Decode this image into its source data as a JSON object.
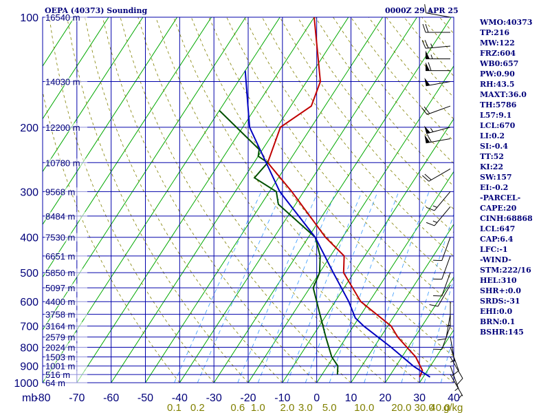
{
  "header": {
    "title": "OEPA (40373) Sounding",
    "time": "0000Z 29 APR 25"
  },
  "indices": [
    "WMO:40373",
    "TP:216",
    "MW:122",
    "FRZ:604",
    "WB0:657",
    "PW:0.90",
    "RH:43.5",
    "MAXT:36.0",
    "TH:5786",
    "L57:9.1",
    "LCL:670",
    "LI:0.2",
    "SI:-0.4",
    "TT:52",
    "KI:22",
    "SW:157",
    "EI:-0.2",
    "-PARCEL-",
    "CAPE:20",
    "CINH:68868",
    "LCL:647",
    "CAP:6.4",
    "LFC:-1",
    "-WIND-",
    "STM:222/16",
    "HEL:310",
    "SHR+:0.0",
    "SRDS:-31",
    "EHI:0.0",
    "BRN:0.1",
    "BSHR:145"
  ],
  "colors": {
    "grid": "#0000aa",
    "skewed_isotherm": "#00a800",
    "dry_adiabat": "#808000",
    "mixing_ratio": "#3399ff",
    "temperature": "#c00000",
    "dewpoint": "#005000",
    "parcel": "#0000c0",
    "wind_barb": "#000000",
    "axis_text": "#00007a",
    "mix_label": "#808000"
  },
  "chart_data": {
    "type": "line",
    "chart_kind": "skew-T log-P sounding",
    "y_scale": "log",
    "x_axis": {
      "unit_label": "mb",
      "ticks": [
        -80,
        -70,
        -60,
        -50,
        -40,
        -30,
        -20,
        -10,
        0,
        10,
        20,
        30,
        40
      ],
      "tick_labels": [
        "-80",
        "-70",
        "-60",
        "-50",
        "-40",
        "-30",
        "-20",
        "-10",
        "0",
        "10",
        "20",
        "30",
        "40"
      ],
      "range": [
        -80,
        40
      ]
    },
    "y_axis": {
      "pressure_ticks": [
        100,
        200,
        300,
        400,
        500,
        600,
        700,
        800,
        900,
        1000
      ],
      "pressure_labels": [
        "100",
        "200",
        "300",
        "400",
        "500",
        "600",
        "700",
        "800",
        "900",
        "1000"
      ],
      "range": [
        100,
        1000
      ]
    },
    "height_labels": [
      {
        "p": 100,
        "label": "16540 m"
      },
      {
        "p": 150,
        "label": "14030 m"
      },
      {
        "p": 200,
        "label": "12200 m"
      },
      {
        "p": 250,
        "label": "10780 m"
      },
      {
        "p": 300,
        "label": "9568 m"
      },
      {
        "p": 350,
        "label": "8484 m"
      },
      {
        "p": 400,
        "label": "7530 m"
      },
      {
        "p": 450,
        "label": "6651 m"
      },
      {
        "p": 500,
        "label": "5850 m"
      },
      {
        "p": 550,
        "label": "5097 m"
      },
      {
        "p": 600,
        "label": "4400 m"
      },
      {
        "p": 650,
        "label": "3758 m"
      },
      {
        "p": 700,
        "label": "3164 m"
      },
      {
        "p": 750,
        "label": "2579 m"
      },
      {
        "p": 800,
        "label": "2024 m"
      },
      {
        "p": 850,
        "label": "1503 m"
      },
      {
        "p": 900,
        "label": "1001 m"
      },
      {
        "p": 950,
        "label": "516 m"
      },
      {
        "p": 1000,
        "label": "64 m"
      }
    ],
    "mixing_ratio_labels": [
      "0.1",
      "0.2",
      "0.6",
      "1.0",
      "2.0",
      "3.0",
      "5.0",
      "10.0",
      "20.0",
      "30.0",
      "40.0"
    ],
    "mixing_ratio_values": [
      0.1,
      0.2,
      0.6,
      1.0,
      2.0,
      3.0,
      5.0,
      10.0,
      20.0,
      30.0,
      40.0
    ],
    "mixing_ratio_unit": "g/kg",
    "series": [
      {
        "key": "temperature",
        "points": [
          [
            100,
            -70
          ],
          [
            150,
            -56
          ],
          [
            175,
            -54
          ],
          [
            200,
            -59
          ],
          [
            250,
            -56
          ],
          [
            300,
            -43.5
          ],
          [
            400,
            -25
          ],
          [
            450,
            -16
          ],
          [
            500,
            -13
          ],
          [
            600,
            -2.5
          ],
          [
            700,
            11
          ],
          [
            750,
            15
          ],
          [
            850,
            24
          ],
          [
            925,
            28.5
          ],
          [
            965,
            29
          ]
        ]
      },
      {
        "key": "dewpoint",
        "points": [
          [
            180,
            -80
          ],
          [
            230,
            -61
          ],
          [
            240,
            -60
          ],
          [
            250,
            -56
          ],
          [
            275,
            -57
          ],
          [
            300,
            -48
          ],
          [
            325,
            -45
          ],
          [
            400,
            -28
          ],
          [
            450,
            -23
          ],
          [
            500,
            -20
          ],
          [
            550,
            -19
          ],
          [
            650,
            -12
          ],
          [
            750,
            -6
          ],
          [
            850,
            -0.5
          ],
          [
            900,
            3
          ],
          [
            950,
            4.5
          ]
        ]
      },
      {
        "key": "parcel",
        "points": [
          [
            140,
            -80
          ],
          [
            200,
            -68
          ],
          [
            300,
            -47
          ],
          [
            400,
            -28
          ],
          [
            500,
            -16
          ],
          [
            600,
            -6
          ],
          [
            665,
            -1
          ],
          [
            700,
            3
          ],
          [
            800,
            15
          ],
          [
            900,
            25
          ],
          [
            965,
            32
          ]
        ]
      }
    ],
    "wind_barbs": [
      {
        "p": 100,
        "dir": 280,
        "spd": 15
      },
      {
        "p": 110,
        "dir": 270,
        "spd": 20
      },
      {
        "p": 120,
        "dir": 265,
        "spd": 25
      },
      {
        "p": 130,
        "dir": 270,
        "spd": 55
      },
      {
        "p": 140,
        "dir": 270,
        "spd": 60
      },
      {
        "p": 150,
        "dir": 260,
        "spd": 50
      },
      {
        "p": 175,
        "dir": 250,
        "spd": 20
      },
      {
        "p": 200,
        "dir": 255,
        "spd": 55
      },
      {
        "p": 215,
        "dir": 260,
        "spd": 60
      },
      {
        "p": 260,
        "dir": 240,
        "spd": 20
      },
      {
        "p": 300,
        "dir": 220,
        "spd": 15
      },
      {
        "p": 330,
        "dir": 220,
        "spd": 15
      },
      {
        "p": 400,
        "dir": 200,
        "spd": 10
      },
      {
        "p": 450,
        "dir": 200,
        "spd": 10
      },
      {
        "p": 500,
        "dir": 200,
        "spd": 10
      },
      {
        "p": 540,
        "dir": 210,
        "spd": 10
      },
      {
        "p": 600,
        "dir": 180,
        "spd": 5
      },
      {
        "p": 650,
        "dir": 190,
        "spd": 10
      },
      {
        "p": 700,
        "dir": 200,
        "spd": 10
      },
      {
        "p": 750,
        "dir": 170,
        "spd": 5
      },
      {
        "p": 800,
        "dir": 160,
        "spd": 10
      },
      {
        "p": 850,
        "dir": 150,
        "spd": 10
      },
      {
        "p": 900,
        "dir": 160,
        "spd": 5
      },
      {
        "p": 950,
        "dir": 150,
        "spd": 5
      }
    ]
  }
}
